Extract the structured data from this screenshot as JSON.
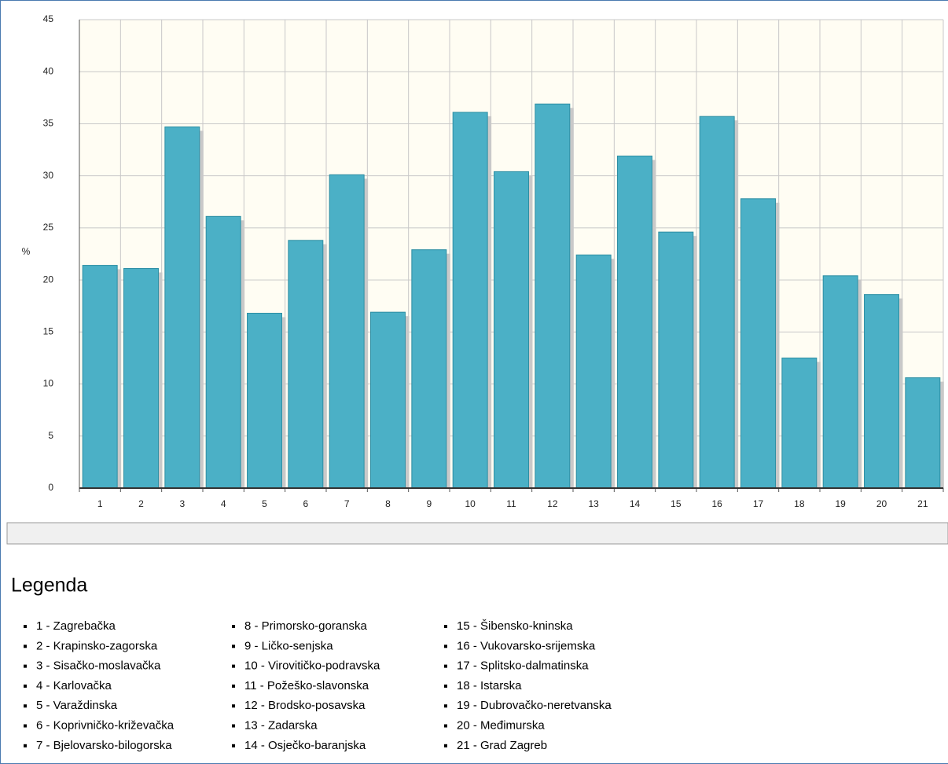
{
  "chart_data": {
    "type": "bar",
    "ylabel": "%",
    "categories": [
      "1",
      "2",
      "3",
      "4",
      "5",
      "6",
      "7",
      "8",
      "9",
      "10",
      "11",
      "12",
      "13",
      "14",
      "15",
      "16",
      "17",
      "18",
      "19",
      "20",
      "21"
    ],
    "values": [
      21.4,
      21.1,
      34.7,
      26.1,
      16.8,
      23.8,
      30.1,
      16.9,
      22.9,
      36.1,
      30.4,
      36.9,
      22.4,
      31.9,
      24.6,
      35.7,
      27.8,
      12.5,
      20.4,
      18.6,
      10.6
    ],
    "color": "#4bb0c6",
    "ylim": [
      0,
      45
    ],
    "yticks": [
      0,
      5,
      10,
      15,
      20,
      25,
      30,
      35,
      40,
      45
    ],
    "grid": true
  },
  "legend": {
    "title": "Legenda",
    "items": [
      "1 - Zagrebačka",
      "2 - Krapinsko-zagorska",
      "3 - Sisačko-moslavačka",
      "4 - Karlovačka",
      "5 - Varaždinska",
      "6 - Koprivničko-križevačka",
      "7 - Bjelovarsko-bilogorska",
      "8 - Primorsko-goranska",
      "9 - Ličko-senjska",
      "10 - Virovitičko-podravska",
      "11 - Požeško-slavonska",
      "12 - Brodsko-posavska",
      "13 - Zadarska",
      "14 - Osječko-baranjska",
      "15 - Šibensko-kninska",
      "16 - Vukovarsko-srijemska",
      "17 - Splitsko-dalmatinska",
      "18 - Istarska",
      "19 - Dubrovačko-neretvanska",
      "20 - Međimurska",
      "21 - Grad Zagreb"
    ]
  }
}
